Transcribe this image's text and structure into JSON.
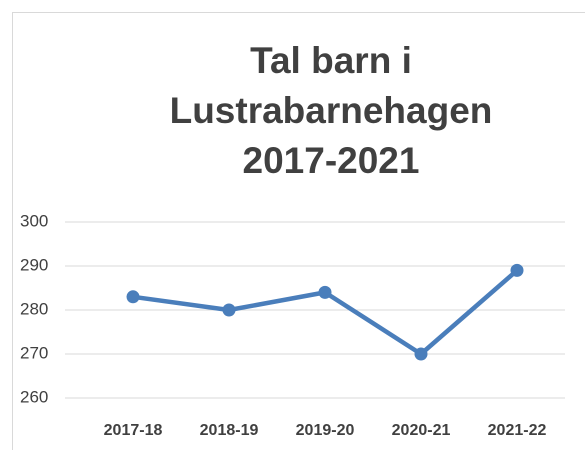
{
  "chart_data": {
    "type": "line",
    "title": "Tal barn i Lustrabarnehagen 2017-2021",
    "categories": [
      "2017-18",
      "2018-19",
      "2019-20",
      "2020-21",
      "2021-22"
    ],
    "series": [
      {
        "name": "Tal barn",
        "color": "#4a7ebb",
        "values": [
          283,
          280,
          284,
          270,
          289
        ]
      }
    ],
    "ylim": [
      260,
      300
    ],
    "yticks": [
      260,
      270,
      280,
      290,
      300
    ],
    "grid": true
  }
}
